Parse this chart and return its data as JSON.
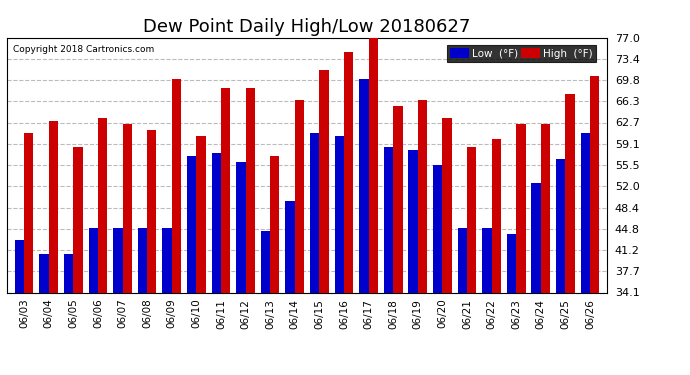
{
  "title": "Dew Point Daily High/Low 20180627",
  "copyright": "Copyright 2018 Cartronics.com",
  "dates": [
    "06/03",
    "06/04",
    "06/05",
    "06/06",
    "06/07",
    "06/08",
    "06/09",
    "06/10",
    "06/11",
    "06/12",
    "06/13",
    "06/14",
    "06/15",
    "06/16",
    "06/17",
    "06/18",
    "06/19",
    "06/20",
    "06/21",
    "06/22",
    "06/23",
    "06/24",
    "06/25",
    "06/26"
  ],
  "high": [
    61.0,
    63.0,
    58.5,
    63.5,
    62.5,
    61.5,
    70.0,
    60.5,
    68.5,
    68.5,
    57.0,
    66.5,
    71.5,
    74.5,
    77.5,
    65.5,
    66.5,
    63.5,
    58.5,
    60.0,
    62.5,
    62.5,
    67.5,
    70.5
  ],
  "low": [
    43.0,
    40.5,
    40.5,
    45.0,
    45.0,
    45.0,
    45.0,
    57.0,
    57.5,
    56.0,
    44.5,
    49.5,
    61.0,
    60.5,
    70.0,
    58.5,
    58.0,
    55.5,
    45.0,
    45.0,
    44.0,
    52.5,
    56.5,
    61.0
  ],
  "ylim_min": 34.1,
  "ylim_max": 77.0,
  "yticks": [
    34.1,
    37.7,
    41.2,
    44.8,
    48.4,
    52.0,
    55.5,
    59.1,
    62.7,
    66.3,
    69.8,
    73.4,
    77.0
  ],
  "bar_width": 0.38,
  "low_color": "#0000cc",
  "high_color": "#cc0000",
  "bg_color": "#ffffff",
  "grid_color": "#bbbbbb",
  "title_fontsize": 13,
  "legend_low_label": "Low  (°F)",
  "legend_high_label": "High  (°F)"
}
